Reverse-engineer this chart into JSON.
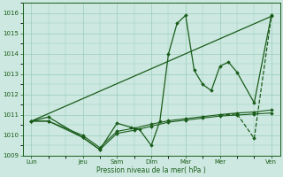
{
  "background_color": "#cce8e0",
  "grid_color": "#99ccbb",
  "line_color": "#1a5c1a",
  "x_tick_labels": [
    "Lun",
    "Jeu",
    "Sam",
    "Dim",
    "Mar",
    "Mer",
    "Ven"
  ],
  "x_tick_positions": [
    0,
    3,
    5,
    7,
    9,
    11,
    14
  ],
  "xlabel": "Pression niveau de la mer( hPa )",
  "ylim": [
    1009.0,
    1016.5
  ],
  "yticks": [
    1009,
    1010,
    1011,
    1012,
    1013,
    1014,
    1015,
    1016
  ],
  "series_main": {
    "x": [
      0,
      1,
      3,
      4,
      5,
      5.8,
      6.3,
      7,
      7.5,
      8,
      8.5,
      9,
      9.5,
      10,
      10.5,
      11,
      11.5,
      12,
      13,
      14
    ],
    "y": [
      1010.7,
      1010.9,
      1009.9,
      1009.3,
      1010.6,
      1010.4,
      1010.3,
      1009.5,
      1010.7,
      1014.0,
      1015.5,
      1015.9,
      1013.2,
      1012.5,
      1012.2,
      1013.4,
      1013.6,
      1013.1,
      1011.6,
      1015.9
    ]
  },
  "series_trend": {
    "x": [
      0,
      14
    ],
    "y": [
      1010.7,
      1015.85
    ]
  },
  "series_flat1": {
    "x": [
      0,
      1,
      3,
      4,
      5,
      6,
      7,
      8,
      9,
      10,
      11,
      12,
      13,
      14
    ],
    "y": [
      1010.7,
      1010.7,
      1009.9,
      1009.3,
      1010.1,
      1010.25,
      1010.45,
      1010.65,
      1010.75,
      1010.85,
      1010.95,
      1011.0,
      1011.05,
      1011.1
    ]
  },
  "series_flat2": {
    "x": [
      0,
      1,
      3,
      4,
      5,
      6,
      7,
      8,
      9,
      10,
      11,
      12,
      13,
      14
    ],
    "y": [
      1010.7,
      1010.7,
      1010.0,
      1009.4,
      1010.2,
      1010.35,
      1010.55,
      1010.72,
      1010.82,
      1010.92,
      1011.02,
      1011.1,
      1011.15,
      1011.25
    ]
  },
  "series_dashed": {
    "x": [
      11,
      12,
      13,
      14
    ],
    "y": [
      1011.0,
      1011.05,
      1009.85,
      1015.85
    ]
  }
}
